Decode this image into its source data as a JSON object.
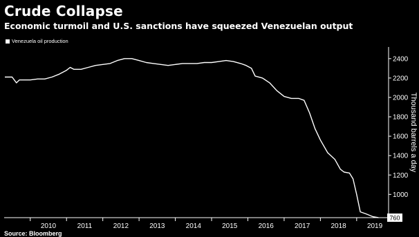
{
  "chart_data": {
    "type": "line",
    "title": "Crude Collapse",
    "subtitle": "Economic turmoil and U.S. sanctions have squeezed Venezuelan output",
    "ylabel": "Thousand barrels a day",
    "source": "Source: Bloomberg",
    "ylim": [
      760,
      2520
    ],
    "xlim": [
      2009.28,
      2019.88
    ],
    "y_ticks": [
      1000,
      1200,
      1400,
      1600,
      1800,
      2000,
      2200,
      2400
    ],
    "x_ticks": [
      "2010",
      "2011",
      "2012",
      "2013",
      "2014",
      "2015",
      "2016",
      "2017",
      "2018",
      "2019"
    ],
    "grid": false,
    "legend_position": "top-left",
    "line_color": "#ffffff",
    "background": "#000000",
    "last_value_label": "760",
    "series": [
      {
        "name": "Venezuela oil production",
        "x": [
          2009.3,
          2009.5,
          2009.62,
          2009.7,
          2009.85,
          2010.0,
          2010.2,
          2010.4,
          2010.6,
          2010.8,
          2011.0,
          2011.1,
          2011.2,
          2011.4,
          2011.6,
          2011.8,
          2012.0,
          2012.2,
          2012.4,
          2012.6,
          2012.8,
          2013.0,
          2013.2,
          2013.4,
          2013.6,
          2013.8,
          2014.0,
          2014.2,
          2014.4,
          2014.6,
          2014.8,
          2015.0,
          2015.2,
          2015.4,
          2015.6,
          2015.8,
          2015.95,
          2016.1,
          2016.2,
          2016.4,
          2016.6,
          2016.8,
          2017.0,
          2017.2,
          2017.4,
          2017.55,
          2017.7,
          2017.85,
          2018.0,
          2018.2,
          2018.4,
          2018.55,
          2018.65,
          2018.8,
          2018.9,
          2019.0,
          2019.1,
          2019.25,
          2019.45,
          2019.6
        ],
        "values": [
          2210,
          2210,
          2150,
          2180,
          2180,
          2180,
          2190,
          2190,
          2210,
          2240,
          2280,
          2310,
          2290,
          2290,
          2310,
          2330,
          2340,
          2350,
          2380,
          2400,
          2400,
          2380,
          2360,
          2350,
          2340,
          2330,
          2340,
          2350,
          2350,
          2350,
          2360,
          2360,
          2370,
          2380,
          2370,
          2350,
          2330,
          2300,
          2220,
          2200,
          2150,
          2070,
          2010,
          1990,
          1990,
          1970,
          1840,
          1680,
          1560,
          1430,
          1360,
          1260,
          1230,
          1220,
          1160,
          1000,
          820,
          800,
          770,
          760
        ]
      }
    ]
  }
}
